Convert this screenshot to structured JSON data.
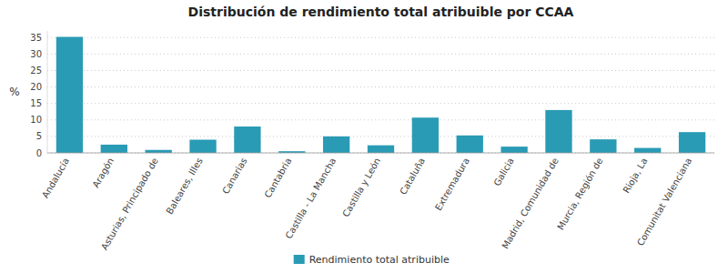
{
  "chart_data": {
    "type": "bar",
    "title": "Distribución de rendimiento total atribuible por CCAA",
    "ylabel": "%",
    "categories": [
      "Andalucía",
      "Aragón",
      "Asturias, Principado de",
      "Baleares, Illes",
      "Canarias",
      "Cantabria",
      "Castilla - La Mancha",
      "Castilla y León",
      "Cataluña",
      "Extremadura",
      "Galicia",
      "Madrid, Comunidad de",
      "Murcia, Región de",
      "Rioja, La",
      "Comunitat Valenciana"
    ],
    "series": [
      {
        "name": "Rendimiento total atribuible",
        "color": "#2A9BB5",
        "values": [
          35.2,
          2.5,
          0.9,
          4.0,
          8.0,
          0.5,
          5.0,
          2.3,
          10.7,
          5.3,
          1.9,
          13.0,
          4.1,
          1.5,
          6.3
        ]
      }
    ],
    "ylim": [
      0,
      37
    ],
    "yticks": [
      0,
      5,
      10,
      15,
      20,
      25,
      30,
      35
    ],
    "grid": true,
    "legend": "bottom"
  }
}
